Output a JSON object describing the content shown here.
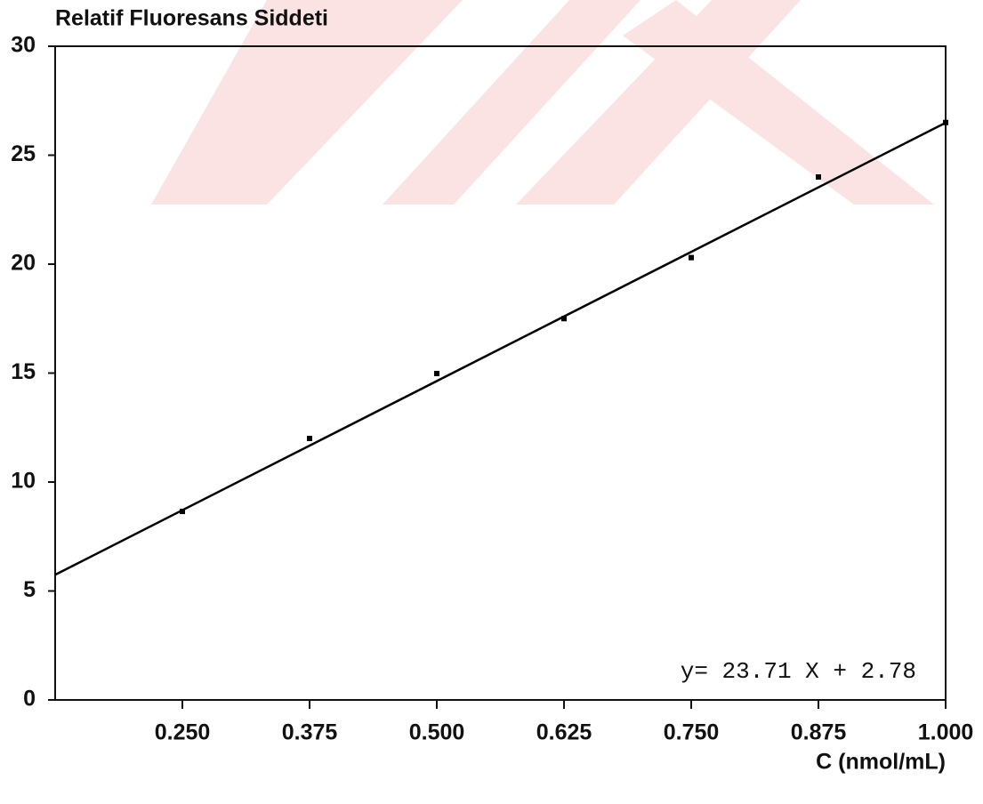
{
  "chart_data": {
    "type": "scatter",
    "title": "Relatif Fluoresans Siddeti",
    "x_label": "C (nmol/mL)",
    "annotation": "y= 23.71 X + 2.78",
    "x": [
      0.25,
      0.375,
      0.5,
      0.625,
      0.75,
      0.875,
      1.0
    ],
    "values": [
      8.65,
      12.0,
      14.98,
      17.5,
      20.3,
      24.0,
      26.5
    ],
    "color": "#000000",
    "fit_line": {
      "slope": 23.71,
      "intercept": 2.78,
      "color": "#000000"
    },
    "xlim": [
      0.125,
      1.0
    ],
    "xticks": [
      {
        "value": 0.25,
        "label": "0.250"
      },
      {
        "value": 0.375,
        "label": "0.375"
      },
      {
        "value": 0.5,
        "label": "0.500"
      },
      {
        "value": 0.625,
        "label": "0.625"
      },
      {
        "value": 0.75,
        "label": "0.750"
      },
      {
        "value": 0.875,
        "label": "0.875"
      },
      {
        "value": 1.0,
        "label": "1.000"
      }
    ],
    "ylim": [
      0,
      30
    ],
    "yticks": [
      0,
      5,
      10,
      15,
      20,
      25,
      30
    ],
    "grid": false
  }
}
